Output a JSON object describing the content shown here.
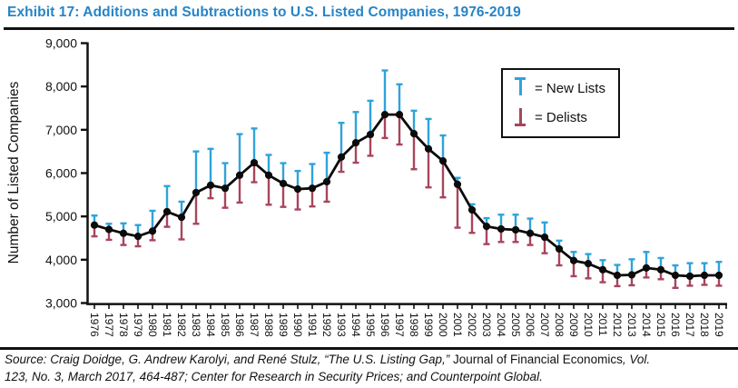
{
  "title": "Exhibit 17: Additions and Subtractions to U.S. Listed Companies, 1976-2019",
  "colors": {
    "title_blue": "#2684c6",
    "new_lists_blue": "#2fa3da",
    "delists_maroon": "#a7455d",
    "line_black": "#0b0b0b"
  },
  "legend": {
    "new_lists_label": "= New Lists",
    "delists_label": "= Delists"
  },
  "source": {
    "line1_italic_prefix": "Source: Craig Doidge, G. Andrew Karolyi, and René Stulz, “The U.S. Listing Gap,” ",
    "line1_journal": "Journal of Financial Economics",
    "line1_italic_suffix": ", Vol.",
    "line2": "123, No. 3, March 2017, 464-487; Center for Research in Security Prices; and Counterpoint Global."
  },
  "chart_data": {
    "type": "line",
    "title": "Exhibit 17: Additions and Subtractions to U.S. Listed Companies, 1976-2019",
    "xlabel": "",
    "ylabel": "Number of Listed Companies",
    "ylim": [
      3000,
      9000
    ],
    "ytick_step": 1000,
    "grid": false,
    "legend_position": "upper right",
    "x": [
      1976,
      1977,
      1978,
      1979,
      1980,
      1981,
      1982,
      1983,
      1984,
      1985,
      1986,
      1987,
      1988,
      1989,
      1990,
      1991,
      1992,
      1993,
      1994,
      1995,
      1996,
      1997,
      1998,
      1999,
      2000,
      2001,
      2002,
      2003,
      2004,
      2005,
      2006,
      2007,
      2008,
      2009,
      2010,
      2011,
      2012,
      2013,
      2014,
      2015,
      2016,
      2017,
      2018,
      2019
    ],
    "series": [
      {
        "name": "Listed Companies",
        "style": "line-with-markers",
        "color": "#0b0b0b",
        "values": [
          4800,
          4700,
          4610,
          4540,
          4660,
          5110,
          4980,
          5550,
          5720,
          5650,
          5950,
          6240,
          5950,
          5760,
          5630,
          5650,
          5800,
          6370,
          6700,
          6890,
          7350,
          7350,
          6910,
          6560,
          6280,
          5740,
          5150,
          4770,
          4710,
          4690,
          4610,
          4520,
          4250,
          3980,
          3910,
          3770,
          3640,
          3650,
          3810,
          3770,
          3640,
          3620,
          3640,
          3640
        ]
      },
      {
        "name": "New Lists",
        "style": "upper-whisker",
        "color": "#2fa3da",
        "values": [
          220,
          130,
          230,
          260,
          470,
          590,
          360,
          950,
          840,
          580,
          950,
          790,
          470,
          470,
          420,
          560,
          670,
          790,
          710,
          780,
          1020,
          700,
          530,
          690,
          590,
          150,
          130,
          190,
          330,
          350,
          340,
          340,
          190,
          200,
          220,
          220,
          240,
          360,
          370,
          270,
          230,
          300,
          280,
          310
        ]
      },
      {
        "name": "Delists",
        "style": "lower-whisker",
        "color": "#a7455d",
        "values": [
          260,
          240,
          270,
          230,
          210,
          350,
          510,
          720,
          300,
          450,
          630,
          450,
          680,
          540,
          470,
          420,
          460,
          340,
          460,
          490,
          540,
          690,
          820,
          890,
          840,
          1000,
          530,
          410,
          300,
          280,
          270,
          370,
          380,
          360,
          340,
          290,
          250,
          240,
          220,
          220,
          290,
          220,
          220,
          240
        ]
      }
    ]
  }
}
